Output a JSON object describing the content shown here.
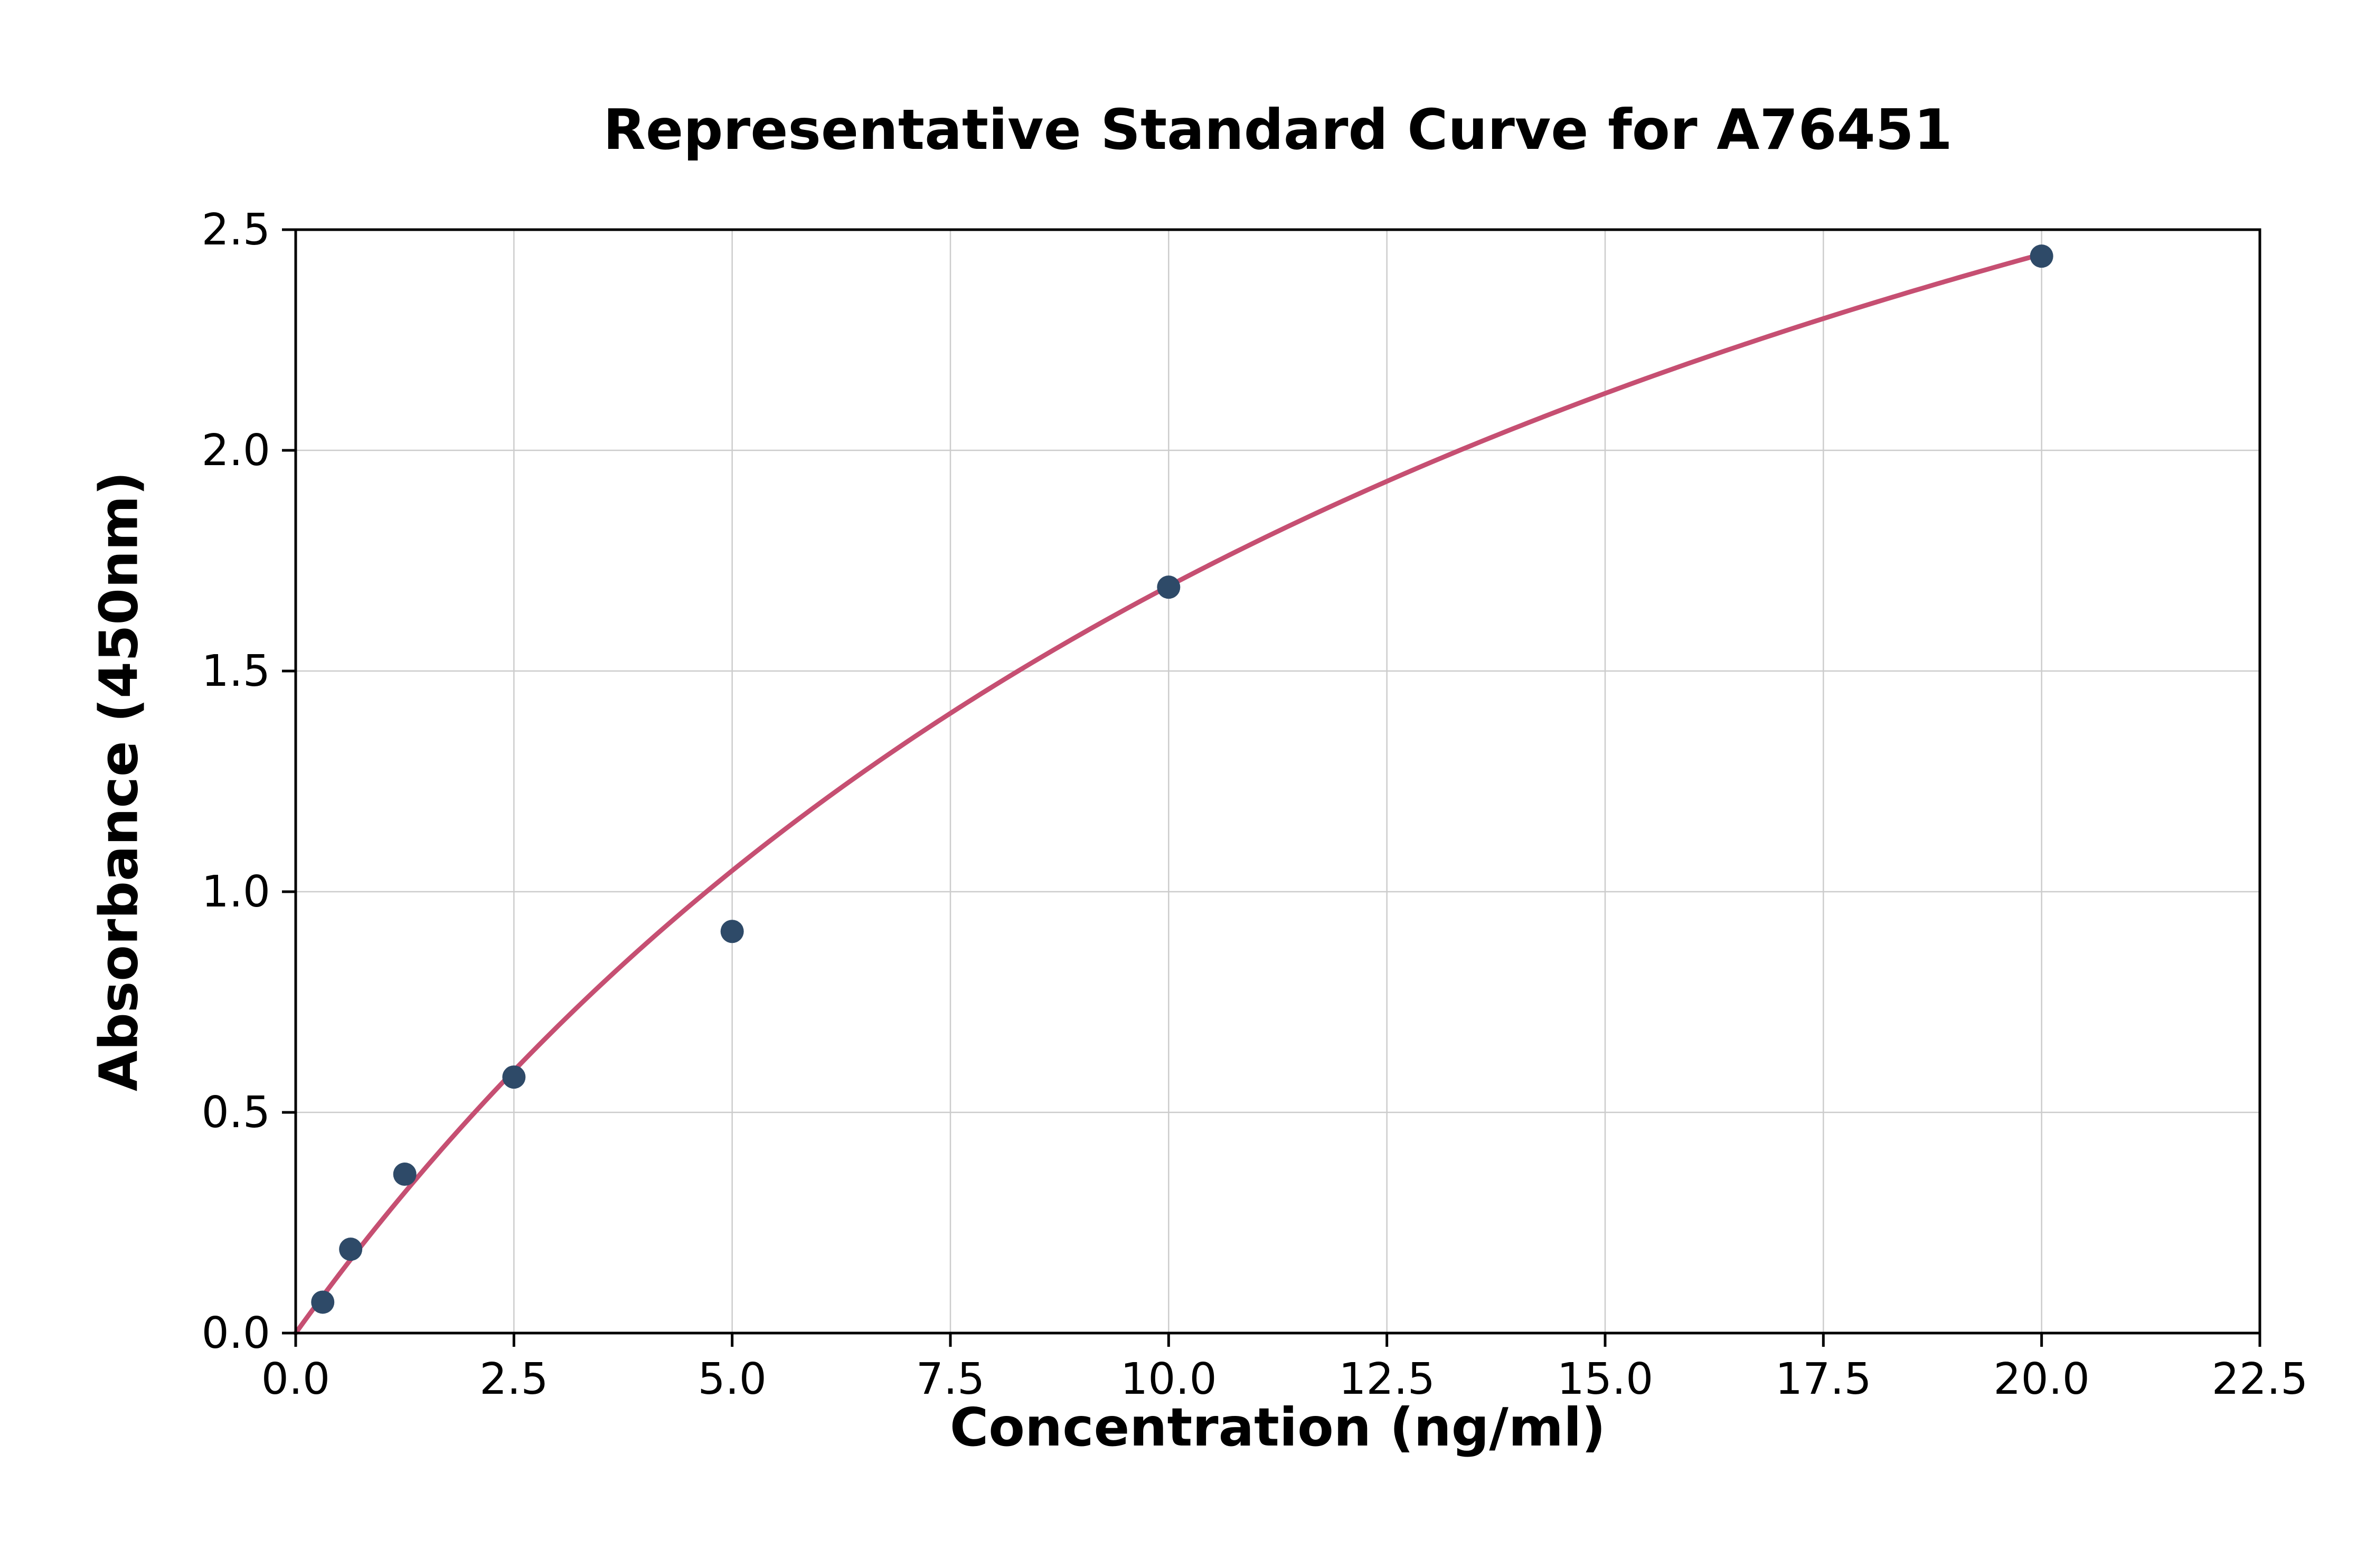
{
  "chart_data": {
    "type": "scatter",
    "title": "Representative Standard Curve for A76451",
    "xlabel": "Concentration (ng/ml)",
    "ylabel": "Absorbance (450nm)",
    "xlim": [
      0,
      22.5
    ],
    "ylim": [
      0,
      2.5
    ],
    "xticks": [
      0.0,
      2.5,
      5.0,
      7.5,
      10.0,
      12.5,
      15.0,
      17.5,
      20.0,
      22.5
    ],
    "yticks": [
      0.0,
      0.5,
      1.0,
      1.5,
      2.0,
      2.5
    ],
    "grid": true,
    "legend": null,
    "points": {
      "x": [
        0.31,
        0.63,
        1.25,
        2.5,
        5.0,
        10.0,
        20.0
      ],
      "y": [
        0.07,
        0.19,
        0.36,
        0.58,
        0.91,
        1.69,
        2.44
      ]
    },
    "fit_curve": {
      "model": "y = a*x/(b+x)",
      "a": 4.4,
      "b": 16.0,
      "x_start": 0,
      "x_end": 20.05
    },
    "colors": {
      "points": "#2e4a68",
      "curve": "#c64f72",
      "grid": "#cccccc",
      "axis": "#000000",
      "text": "#000000",
      "background": "#ffffff"
    }
  }
}
